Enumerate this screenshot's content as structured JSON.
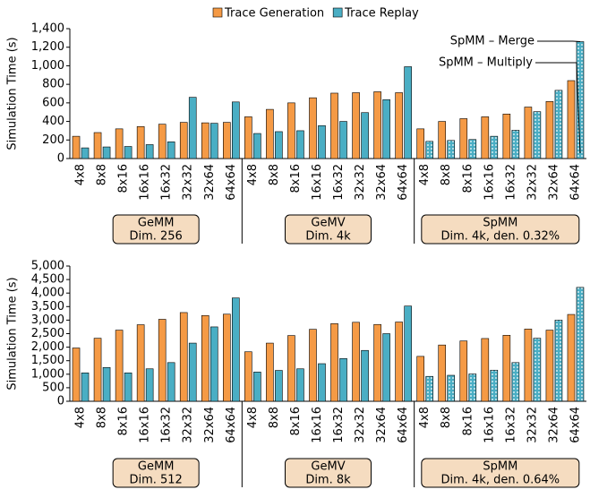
{
  "chart_data": [
    {
      "type": "bar",
      "ylabel": "Simulation Time (s)",
      "ylim": [
        0,
        1400
      ],
      "yticks": [
        0,
        200,
        400,
        600,
        800,
        {
          "value": 1000,
          "label": "1,000"
        },
        {
          "value": 1200,
          "label": "1,200"
        },
        {
          "value": 1400,
          "label": "1,400"
        }
      ],
      "grid": false,
      "categories": [
        "4x8",
        "8x8",
        "8x16",
        "16x16",
        "16x32",
        "32x32",
        "32x64",
        "64x64",
        "4x8",
        "8x8",
        "8x16",
        "16x16",
        "16x32",
        "32x32",
        "32x64",
        "64x64",
        "4x8",
        "8x8",
        "8x16",
        "16x16",
        "16x32",
        "32x32",
        "32x64",
        "64x64"
      ],
      "groups": [
        {
          "name": "GeMM",
          "sub": "Dim. 256",
          "pattern": "solid"
        },
        {
          "name": "GeMV",
          "sub": "Dim. 4k",
          "pattern": "solid"
        },
        {
          "name": "SpMM",
          "sub": "Dim. 4k, den. 0.32%",
          "pattern": "dots"
        }
      ],
      "series": [
        {
          "name": "Trace Generation",
          "color": "#f59a45",
          "values": [
            240,
            280,
            320,
            345,
            370,
            390,
            385,
            390,
            450,
            530,
            600,
            655,
            705,
            710,
            720,
            710,
            320,
            400,
            430,
            450,
            480,
            555,
            615,
            840
          ]
        },
        {
          "name": "Trace Replay",
          "color": "#4aaec4",
          "values": [
            115,
            125,
            130,
            150,
            180,
            660,
            380,
            610,
            270,
            290,
            300,
            355,
            400,
            495,
            635,
            990,
            185,
            195,
            205,
            240,
            305,
            505,
            735,
            1260
          ]
        }
      ],
      "annotations": [
        "SpMM – Merge",
        "SpMM – Multiply"
      ]
    },
    {
      "type": "bar",
      "ylabel": "Simulation Time (s)",
      "ylim": [
        0,
        5000
      ],
      "yticks": [
        0,
        500,
        {
          "value": 1000,
          "label": "1,000"
        },
        {
          "value": 1500,
          "label": "1,500"
        },
        {
          "value": 2000,
          "label": "2,000"
        },
        {
          "value": 2500,
          "label": "2,500"
        },
        {
          "value": 3000,
          "label": "3,000"
        },
        {
          "value": 3500,
          "label": "3,500"
        },
        {
          "value": 4000,
          "label": "4,000"
        },
        {
          "value": 4500,
          "label": "4,500"
        },
        {
          "value": 5000,
          "label": "5,000"
        }
      ],
      "grid": false,
      "categories": [
        "4x8",
        "8x8",
        "8x16",
        "16x16",
        "16x32",
        "32x32",
        "32x64",
        "64x64",
        "4x8",
        "8x8",
        "8x16",
        "16x16",
        "16x32",
        "32x32",
        "32x64",
        "64x64",
        "4x8",
        "8x8",
        "8x16",
        "16x16",
        "16x32",
        "32x32",
        "32x64",
        "64x64"
      ],
      "groups": [
        {
          "name": "GeMM",
          "sub": "Dim. 512",
          "pattern": "solid"
        },
        {
          "name": "GeMV",
          "sub": "Dim. 8k",
          "pattern": "solid"
        },
        {
          "name": "SpMM",
          "sub": "Dim. 4k, den. 0.64%",
          "pattern": "dots"
        }
      ],
      "series": [
        {
          "color": "#f59a45",
          "values": [
            1970,
            2330,
            2630,
            2830,
            3030,
            3280,
            3170,
            3220,
            1830,
            2150,
            2430,
            2660,
            2870,
            2920,
            2840,
            2930,
            1660,
            2080,
            2230,
            2320,
            2440,
            2670,
            2630,
            3210
          ]
        },
        {
          "color": "#4aaec4",
          "values": [
            1050,
            1250,
            1050,
            1200,
            1430,
            2150,
            2750,
            3820,
            1080,
            1140,
            1200,
            1390,
            1580,
            1880,
            2500,
            3520,
            920,
            960,
            1010,
            1150,
            1430,
            2330,
            3000,
            4210
          ]
        }
      ]
    }
  ]
}
